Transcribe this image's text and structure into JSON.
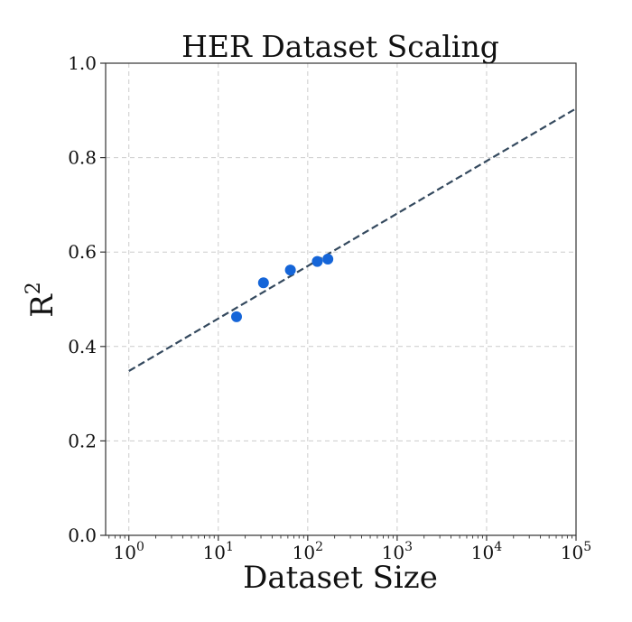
{
  "chart_data": {
    "type": "scatter",
    "title": "HER Dataset Scaling",
    "xlabel": "Dataset Size",
    "ylabel_base": "R",
    "ylabel_sup": "2",
    "x_scale": "log",
    "xlim": [
      0.55,
      100000
    ],
    "ylim": [
      0.0,
      1.0
    ],
    "x_ticks": [
      {
        "base": "10",
        "exp": "0",
        "value": 1
      },
      {
        "base": "10",
        "exp": "1",
        "value": 10
      },
      {
        "base": "10",
        "exp": "2",
        "value": 100
      },
      {
        "base": "10",
        "exp": "3",
        "value": 1000
      },
      {
        "base": "10",
        "exp": "4",
        "value": 10000
      },
      {
        "base": "10",
        "exp": "5",
        "value": 100000
      }
    ],
    "y_ticks": [
      "0.0",
      "0.2",
      "0.4",
      "0.6",
      "0.8",
      "1.0"
    ],
    "grid": true,
    "points": [
      {
        "x": 16,
        "y": 0.463
      },
      {
        "x": 32,
        "y": 0.535
      },
      {
        "x": 64,
        "y": 0.562
      },
      {
        "x": 128,
        "y": 0.58
      },
      {
        "x": 168,
        "y": 0.585
      }
    ],
    "fit_line": {
      "x": [
        1,
        100000
      ],
      "y": [
        0.348,
        0.904
      ],
      "style": "dashed"
    },
    "colors": {
      "points": "#1565d8",
      "fit_line": "#34495e",
      "grid": "#cccccc"
    }
  }
}
